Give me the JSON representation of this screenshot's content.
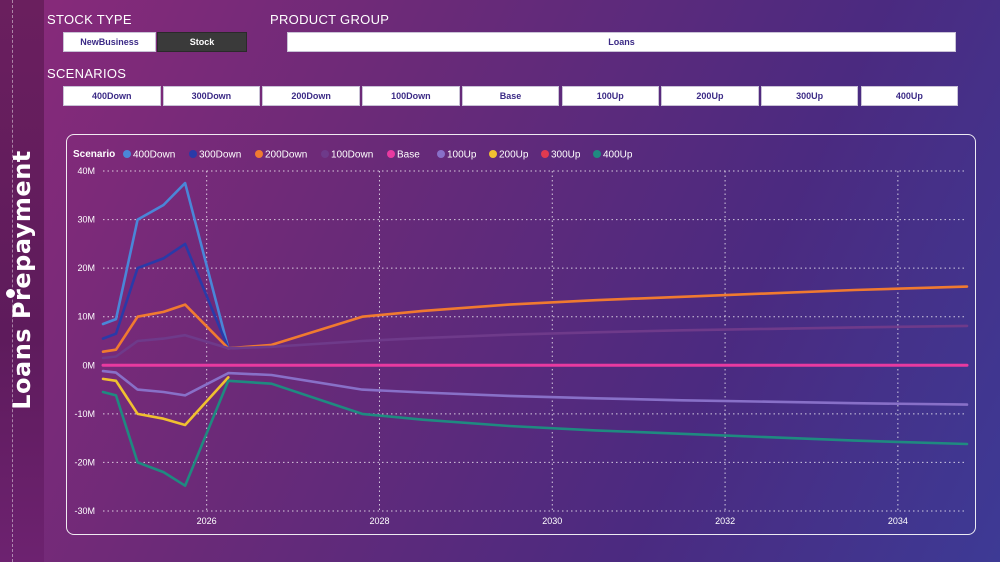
{
  "page_title": "Loans Prepayment",
  "stock_type": {
    "label": "STOCK TYPE",
    "options": [
      {
        "label": "NewBusiness",
        "selected": false
      },
      {
        "label": "Stock",
        "selected": true
      }
    ]
  },
  "product_group": {
    "label": "PRODUCT GROUP",
    "value": "Loans"
  },
  "scenarios": {
    "label": "SCENARIOS",
    "options": [
      "400Down",
      "300Down",
      "200Down",
      "100Down",
      "Base",
      "100Up",
      "200Up",
      "300Up",
      "400Up"
    ]
  },
  "chart_data": {
    "type": "line",
    "title": "",
    "legend_title": "Scenario",
    "legend_position": "top-left",
    "xlabel": "",
    "ylabel": "",
    "x_ticks": [
      2026,
      2028,
      2030,
      2032,
      2034
    ],
    "x_range": [
      2024.8,
      2034.8
    ],
    "y_range": [
      -30,
      40
    ],
    "y_ticks": [
      40,
      30,
      20,
      10,
      0,
      -10,
      -20,
      -30
    ],
    "y_tick_labels": [
      "40M",
      "30M",
      "20M",
      "10M",
      "0M",
      "-10M",
      "-20M",
      "-30M"
    ],
    "grid": true,
    "series": [
      {
        "name": "400Down",
        "color": "#4a86d8",
        "points": [
          [
            2024.8,
            8.5
          ],
          [
            2024.95,
            9.5
          ],
          [
            2025.2,
            30
          ],
          [
            2025.5,
            33
          ],
          [
            2025.75,
            37.5
          ],
          [
            2026.25,
            3.5
          ],
          [
            2026.7,
            3.9
          ]
        ]
      },
      {
        "name": "300Down",
        "color": "#2a3aa8",
        "points": [
          [
            2024.8,
            5.5
          ],
          [
            2024.95,
            6.5
          ],
          [
            2025.2,
            20
          ],
          [
            2025.5,
            22
          ],
          [
            2025.75,
            25
          ],
          [
            2026.25,
            3.5
          ],
          [
            2026.7,
            3.9
          ]
        ]
      },
      {
        "name": "200Down",
        "color": "#f07a30",
        "points": [
          [
            2024.8,
            2.8
          ],
          [
            2024.95,
            3.2
          ],
          [
            2025.2,
            10
          ],
          [
            2025.5,
            11
          ],
          [
            2025.75,
            12.5
          ],
          [
            2026.25,
            3.5
          ],
          [
            2026.75,
            4.2
          ],
          [
            2027.8,
            10
          ],
          [
            2028.5,
            11.2
          ],
          [
            2029.5,
            12.5
          ],
          [
            2030.5,
            13.4
          ],
          [
            2031.5,
            14.1
          ],
          [
            2032.5,
            14.8
          ],
          [
            2033.5,
            15.5
          ],
          [
            2034.8,
            16.2
          ]
        ]
      },
      {
        "name": "100Down",
        "color": "#6e3a8a",
        "points": [
          [
            2024.8,
            1.5
          ],
          [
            2024.95,
            1.8
          ],
          [
            2025.2,
            5
          ],
          [
            2025.5,
            5.5
          ],
          [
            2025.75,
            6.2
          ],
          [
            2026.25,
            3.5
          ],
          [
            2026.75,
            3.8
          ],
          [
            2027.8,
            5
          ],
          [
            2028.5,
            5.6
          ],
          [
            2029.5,
            6.3
          ],
          [
            2030.5,
            6.8
          ],
          [
            2031.5,
            7.2
          ],
          [
            2032.5,
            7.5
          ],
          [
            2033.5,
            7.8
          ],
          [
            2034.8,
            8.1
          ]
        ]
      },
      {
        "name": "Base",
        "color": "#e83aa0",
        "points": [
          [
            2024.8,
            0
          ],
          [
            2034.8,
            0
          ]
        ]
      },
      {
        "name": "100Up",
        "color": "#8870c8",
        "points": [
          [
            2024.8,
            -1.2
          ],
          [
            2024.95,
            -1.5
          ],
          [
            2025.2,
            -5
          ],
          [
            2025.5,
            -5.5
          ],
          [
            2025.75,
            -6.2
          ],
          [
            2026.25,
            -1.6
          ],
          [
            2026.75,
            -2
          ],
          [
            2027.8,
            -5
          ],
          [
            2028.5,
            -5.6
          ],
          [
            2029.5,
            -6.3
          ],
          [
            2030.5,
            -6.8
          ],
          [
            2031.5,
            -7.2
          ],
          [
            2032.5,
            -7.5
          ],
          [
            2033.5,
            -7.8
          ],
          [
            2034.8,
            -8.1
          ]
        ]
      },
      {
        "name": "200Up",
        "color": "#f0c030",
        "points": [
          [
            2024.8,
            -2.8
          ],
          [
            2024.95,
            -3.2
          ],
          [
            2025.2,
            -10
          ],
          [
            2025.5,
            -11
          ],
          [
            2025.75,
            -12.3
          ],
          [
            2026.25,
            -2.5
          ]
        ]
      },
      {
        "name": "300Up",
        "color": "#e03a50",
        "points": []
      },
      {
        "name": "400Up",
        "color": "#1f8a80",
        "points": [
          [
            2024.8,
            -5.5
          ],
          [
            2024.95,
            -6.2
          ],
          [
            2025.2,
            -20
          ],
          [
            2025.5,
            -22
          ],
          [
            2025.75,
            -24.8
          ],
          [
            2026.25,
            -3.2
          ],
          [
            2026.75,
            -3.8
          ],
          [
            2027.8,
            -10
          ],
          [
            2028.5,
            -11.2
          ],
          [
            2029.5,
            -12.5
          ],
          [
            2030.5,
            -13.4
          ],
          [
            2031.5,
            -14.1
          ],
          [
            2032.5,
            -14.8
          ],
          [
            2033.5,
            -15.5
          ],
          [
            2034.8,
            -16.2
          ]
        ]
      }
    ]
  }
}
